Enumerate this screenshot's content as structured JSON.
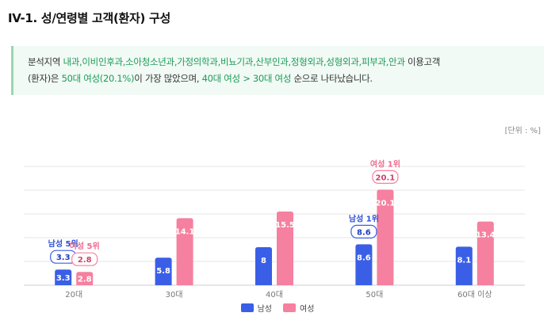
{
  "page": {
    "title": "IV-1. 성/연령별 고객(환자) 구성",
    "summary": {
      "part1": "분석지역 ",
      "departments": "내과,이비인후과,소아청소년과,가정의학과,비뇨기과,산부인과,정형외과,성형외과,피부과,안과",
      "part2": " 이용고객",
      "part3": "(환자)은 ",
      "top_group": "50대 여성(20.1%)",
      "part4": "이 가장 많았으며, ",
      "rank_text": "40대 여성 > 30대 여성",
      "part5": " 순으로 나타났습니다."
    },
    "unit": "[단위 : %]"
  },
  "colors": {
    "male": "#3a5fe6",
    "female": "#f5809f",
    "grid": "#e4e4e4"
  },
  "chart_data": {
    "type": "bar",
    "categories": [
      "20대",
      "30대",
      "40대",
      "50대",
      "60대 이상"
    ],
    "series": [
      {
        "name": "남성",
        "values": [
          3.3,
          5.8,
          8,
          8.6,
          8.1
        ]
      },
      {
        "name": "여성",
        "values": [
          2.8,
          14.1,
          15.5,
          20.1,
          13.4
        ]
      }
    ],
    "ylim": [
      0,
      25
    ],
    "grid": true,
    "legend": "bottom-center",
    "callouts": [
      {
        "series": "남성",
        "category": "50대",
        "label": "남성 1위",
        "value": "8.6"
      },
      {
        "series": "여성",
        "category": "50대",
        "label": "여성 1위",
        "value": "20.1"
      },
      {
        "series": "남성",
        "category": "20대",
        "label": "남성 5위",
        "value": "3.3"
      },
      {
        "series": "여성",
        "category": "20대",
        "label": "여성 5위",
        "value": "2.8"
      }
    ]
  }
}
